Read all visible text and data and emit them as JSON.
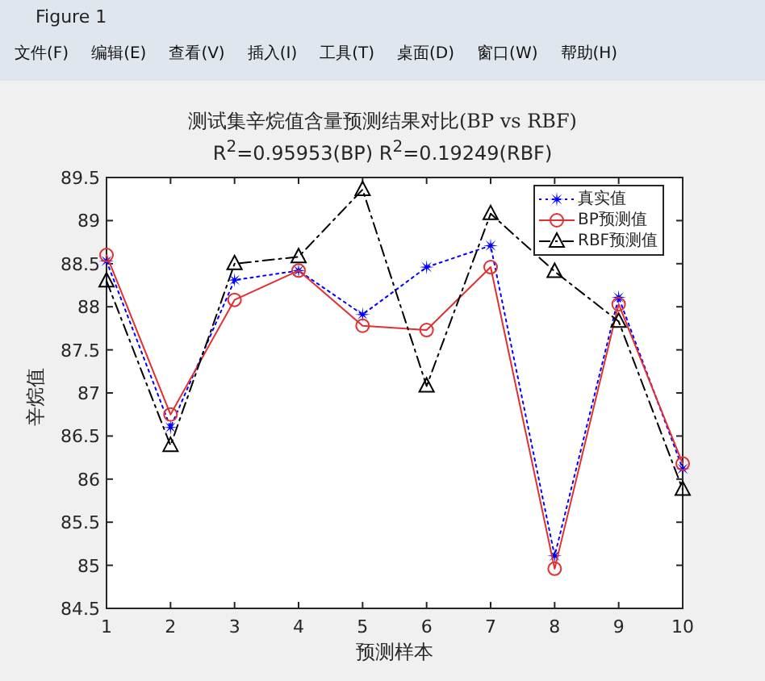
{
  "chart_data": {
    "type": "line",
    "title": "测试集辛烷值含量预测结果对比(BP vs RBF)",
    "subtitle": "R$^{2}$=0.95953(BP)  R$^{2}$=0.19249(RBF)",
    "xlabel": "预测样本",
    "ylabel": "辛烷值",
    "annotations": [
      "Figure 1",
      "文件(F)",
      "编辑(E)",
      "查看(V)",
      "插入(I)",
      "工具(T)",
      "桌面(D)",
      "窗口(W)",
      "帮助(H)"
    ],
    "x": [
      1,
      2,
      3,
      4,
      5,
      6,
      7,
      8,
      9,
      10
    ],
    "xlim": [
      1,
      10
    ],
    "xticks": [
      1,
      2,
      3,
      4,
      5,
      6,
      7,
      8,
      9,
      10
    ],
    "ylim": [
      84.5,
      89.5
    ],
    "yticks": [
      84.5,
      85,
      85.5,
      86,
      86.5,
      87,
      87.5,
      88,
      88.5,
      89,
      89.5
    ],
    "grid": false,
    "legend": "top right",
    "series": [
      {
        "name": "真实值",
        "color": "#0000ff",
        "marker": "star",
        "line_style": "dotted",
        "values": [
          88.53,
          86.6,
          88.31,
          88.42,
          87.91,
          88.46,
          88.71,
          85.11,
          88.11,
          86.12
        ]
      },
      {
        "name": "BP预测值",
        "color": "#e03030",
        "marker": "circle",
        "line_style": "solid",
        "values": [
          88.6,
          86.75,
          88.08,
          88.42,
          87.78,
          87.73,
          88.46,
          84.96,
          88.03,
          86.18
        ]
      },
      {
        "name": "RBF预测值",
        "color": "#000000",
        "marker": "triangle",
        "line_style": "dashdot",
        "values": [
          88.3,
          86.39,
          88.5,
          88.58,
          89.36,
          87.08,
          89.08,
          88.41,
          87.83,
          85.88
        ]
      }
    ]
  }
}
